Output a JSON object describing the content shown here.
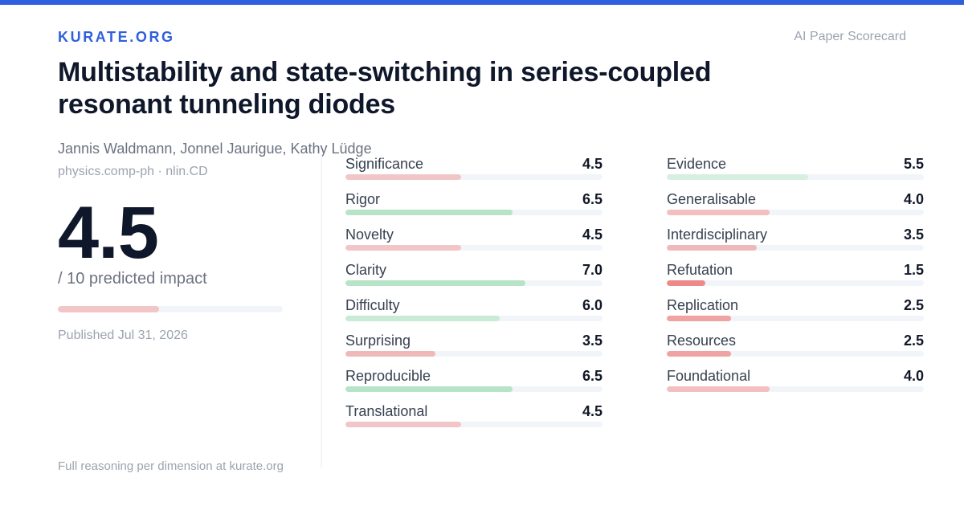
{
  "brand": "KURATE.ORG",
  "tagline": "AI Paper Scorecard",
  "paper": {
    "title": "Multistability and state-switching in series-coupled resonant tunneling diodes",
    "authors": "Jannis Waldmann, Jonnel Jaurigue, Kathy Lüdge",
    "category": "physics.comp-ph · nlin.CD",
    "published": "Published Jul 31, 2026"
  },
  "impact": {
    "score": "4.5",
    "label": "/ 10 predicted impact",
    "fraction": 0.45,
    "bar_color": "#f2c6c6"
  },
  "footer": "Full reasoning per dimension at kurate.org",
  "dimensions_left": [
    {
      "name": "Significance",
      "value": "4.5",
      "fraction": 0.45,
      "color": "#f2c6c6"
    },
    {
      "name": "Rigor",
      "value": "6.5",
      "fraction": 0.65,
      "color": "#b7e4c7"
    },
    {
      "name": "Novelty",
      "value": "4.5",
      "fraction": 0.45,
      "color": "#f2c6c6"
    },
    {
      "name": "Clarity",
      "value": "7.0",
      "fraction": 0.7,
      "color": "#b7e4c7"
    },
    {
      "name": "Difficulty",
      "value": "6.0",
      "fraction": 0.6,
      "color": "#c9ebd5"
    },
    {
      "name": "Surprising",
      "value": "3.5",
      "fraction": 0.35,
      "color": "#f0b9b9"
    },
    {
      "name": "Reproducible",
      "value": "6.5",
      "fraction": 0.65,
      "color": "#b7e4c7"
    },
    {
      "name": "Translational",
      "value": "4.5",
      "fraction": 0.45,
      "color": "#f2c6c6"
    }
  ],
  "dimensions_right": [
    {
      "name": "Evidence",
      "value": "5.5",
      "fraction": 0.55,
      "color": "#d7efe0"
    },
    {
      "name": "Generalisable",
      "value": "4.0",
      "fraction": 0.4,
      "color": "#f2c0c0"
    },
    {
      "name": "Interdisciplinary",
      "value": "3.5",
      "fraction": 0.35,
      "color": "#f0b9b9"
    },
    {
      "name": "Refutation",
      "value": "1.5",
      "fraction": 0.15,
      "color": "#ec8a8a"
    },
    {
      "name": "Replication",
      "value": "2.5",
      "fraction": 0.25,
      "color": "#efa3a3"
    },
    {
      "name": "Resources",
      "value": "2.5",
      "fraction": 0.25,
      "color": "#efa3a3"
    },
    {
      "name": "Foundational",
      "value": "4.0",
      "fraction": 0.4,
      "color": "#f2c0c0"
    }
  ]
}
